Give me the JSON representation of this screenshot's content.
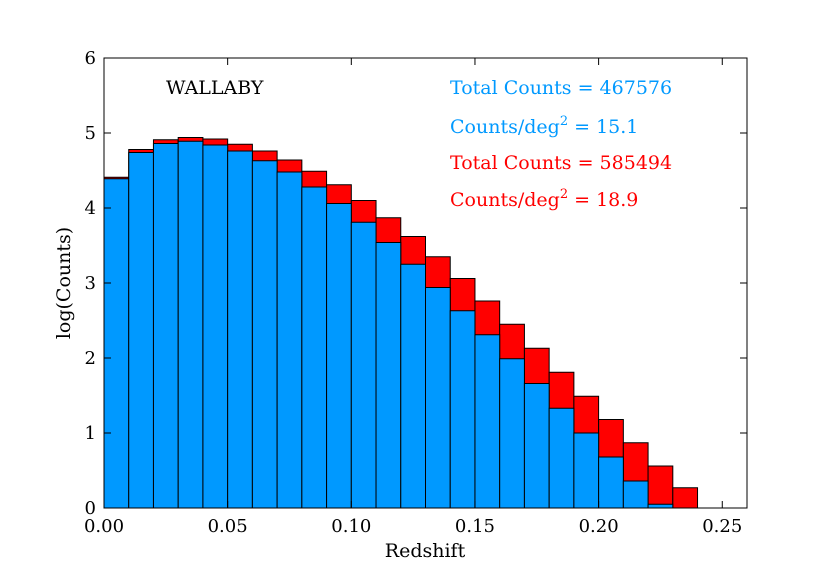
{
  "chart_data": {
    "type": "bar",
    "title": "",
    "xlabel": "Redshift",
    "ylabel": "log(Counts)",
    "xlim": [
      0.0,
      0.26
    ],
    "ylim": [
      0,
      6
    ],
    "x_ticks": [
      "0.00",
      "0.05",
      "0.10",
      "0.15",
      "0.20",
      "0.25"
    ],
    "y_ticks": [
      "0",
      "1",
      "2",
      "3",
      "4",
      "5",
      "6"
    ],
    "bin_width": 0.01,
    "bin_starts": [
      0.0,
      0.01,
      0.02,
      0.03,
      0.04,
      0.05,
      0.06,
      0.07,
      0.08,
      0.09,
      0.1,
      0.11,
      0.12,
      0.13,
      0.14,
      0.15,
      0.16,
      0.17,
      0.18,
      0.19,
      0.2,
      0.21,
      0.22,
      0.23
    ],
    "series": [
      {
        "color": "#ff0000",
        "values": [
          4.41,
          4.78,
          4.91,
          4.94,
          4.92,
          4.85,
          4.76,
          4.64,
          4.49,
          4.31,
          4.1,
          3.87,
          3.62,
          3.35,
          3.06,
          2.76,
          2.45,
          2.13,
          1.81,
          1.49,
          1.18,
          0.87,
          0.56,
          0.27
        ]
      },
      {
        "color": "#0099ff",
        "values": [
          4.39,
          4.74,
          4.86,
          4.89,
          4.84,
          4.76,
          4.63,
          4.48,
          4.28,
          4.06,
          3.81,
          3.54,
          3.25,
          2.94,
          2.63,
          2.31,
          1.99,
          1.66,
          1.33,
          1.0,
          0.68,
          0.36,
          0.05,
          0.0
        ]
      }
    ],
    "annotations": {
      "survey": "WALLABY",
      "blue_total": "Total Counts = 467576",
      "blue_density_prefix": "Counts/deg",
      "blue_density_suffix": " = 15.1",
      "red_total": "Total Counts = 585494",
      "red_density_prefix": "Counts/deg",
      "red_density_suffix": " = 18.9",
      "superscript": "2"
    },
    "grid": false,
    "legend": "none"
  }
}
